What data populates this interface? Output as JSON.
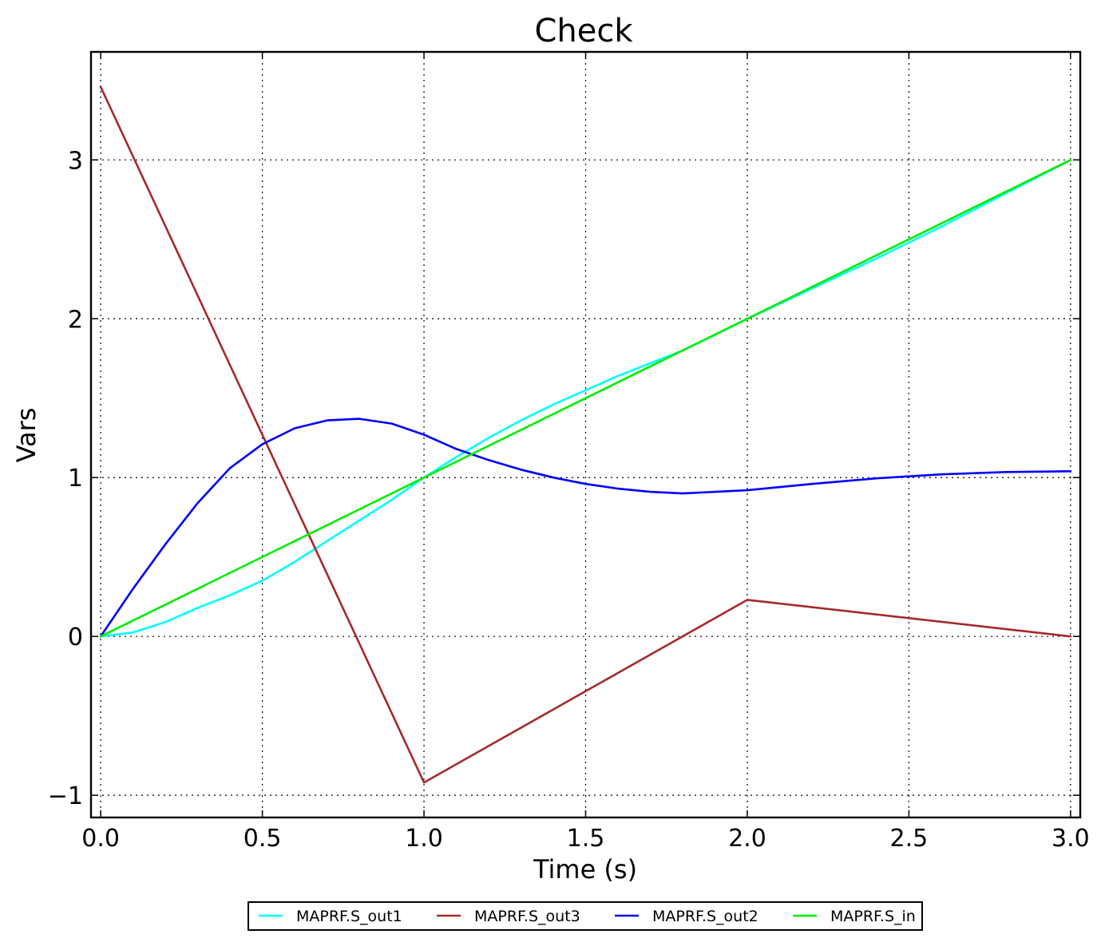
{
  "chart_data": {
    "type": "line",
    "title": "Check",
    "xlabel": "Time (s)",
    "ylabel": "Vars",
    "xlim": [
      -0.03,
      3.03
    ],
    "ylim": [
      -1.14,
      3.68
    ],
    "grid": true,
    "legend_position": "bottom",
    "x_ticks": [
      0.0,
      0.5,
      1.0,
      1.5,
      2.0,
      2.5,
      3.0
    ],
    "x_tick_labels": [
      "0.0",
      "0.5",
      "1.0",
      "1.5",
      "2.0",
      "2.5",
      "3.0"
    ],
    "y_ticks": [
      -1,
      0,
      1,
      2,
      3
    ],
    "y_tick_labels": [
      "−1",
      "0",
      "1",
      "2",
      "3"
    ],
    "series": [
      {
        "name": "MAPRF.S_out1",
        "color": "#00ffff",
        "x": [
          0,
          0.1,
          0.2,
          0.3,
          0.4,
          0.5,
          0.6,
          0.7,
          0.8,
          0.9,
          1.0,
          1.1,
          1.2,
          1.3,
          1.4,
          1.5,
          1.6,
          1.7,
          1.8,
          1.9,
          2.0,
          2.2,
          2.4,
          2.6,
          2.8,
          3.0
        ],
        "y": [
          0,
          0.025,
          0.09,
          0.18,
          0.26,
          0.35,
          0.47,
          0.6,
          0.73,
          0.86,
          1.0,
          1.13,
          1.25,
          1.36,
          1.46,
          1.55,
          1.64,
          1.72,
          1.8,
          1.9,
          2.0,
          2.19,
          2.38,
          2.58,
          2.79,
          3.0
        ]
      },
      {
        "name": "MAPRF.S_out3",
        "color": "#a52a2a",
        "x": [
          0,
          1.0,
          2.0,
          3.0
        ],
        "y": [
          3.46,
          -0.92,
          0.23,
          0.0
        ]
      },
      {
        "name": "MAPRF.S_out2",
        "color": "#0000ff",
        "x": [
          0,
          0.1,
          0.2,
          0.3,
          0.4,
          0.5,
          0.6,
          0.7,
          0.8,
          0.9,
          1.0,
          1.1,
          1.2,
          1.3,
          1.4,
          1.5,
          1.6,
          1.7,
          1.8,
          1.9,
          2.0,
          2.2,
          2.4,
          2.6,
          2.8,
          3.0
        ],
        "y": [
          0,
          0.3,
          0.58,
          0.84,
          1.06,
          1.21,
          1.31,
          1.36,
          1.37,
          1.34,
          1.27,
          1.18,
          1.11,
          1.05,
          1.0,
          0.96,
          0.93,
          0.91,
          0.9,
          0.91,
          0.92,
          0.96,
          0.995,
          1.02,
          1.035,
          1.04
        ]
      },
      {
        "name": "MAPRF.S_in",
        "color": "#00ee00",
        "x": [
          0,
          3.0
        ],
        "y": [
          0,
          3.0
        ]
      }
    ]
  }
}
